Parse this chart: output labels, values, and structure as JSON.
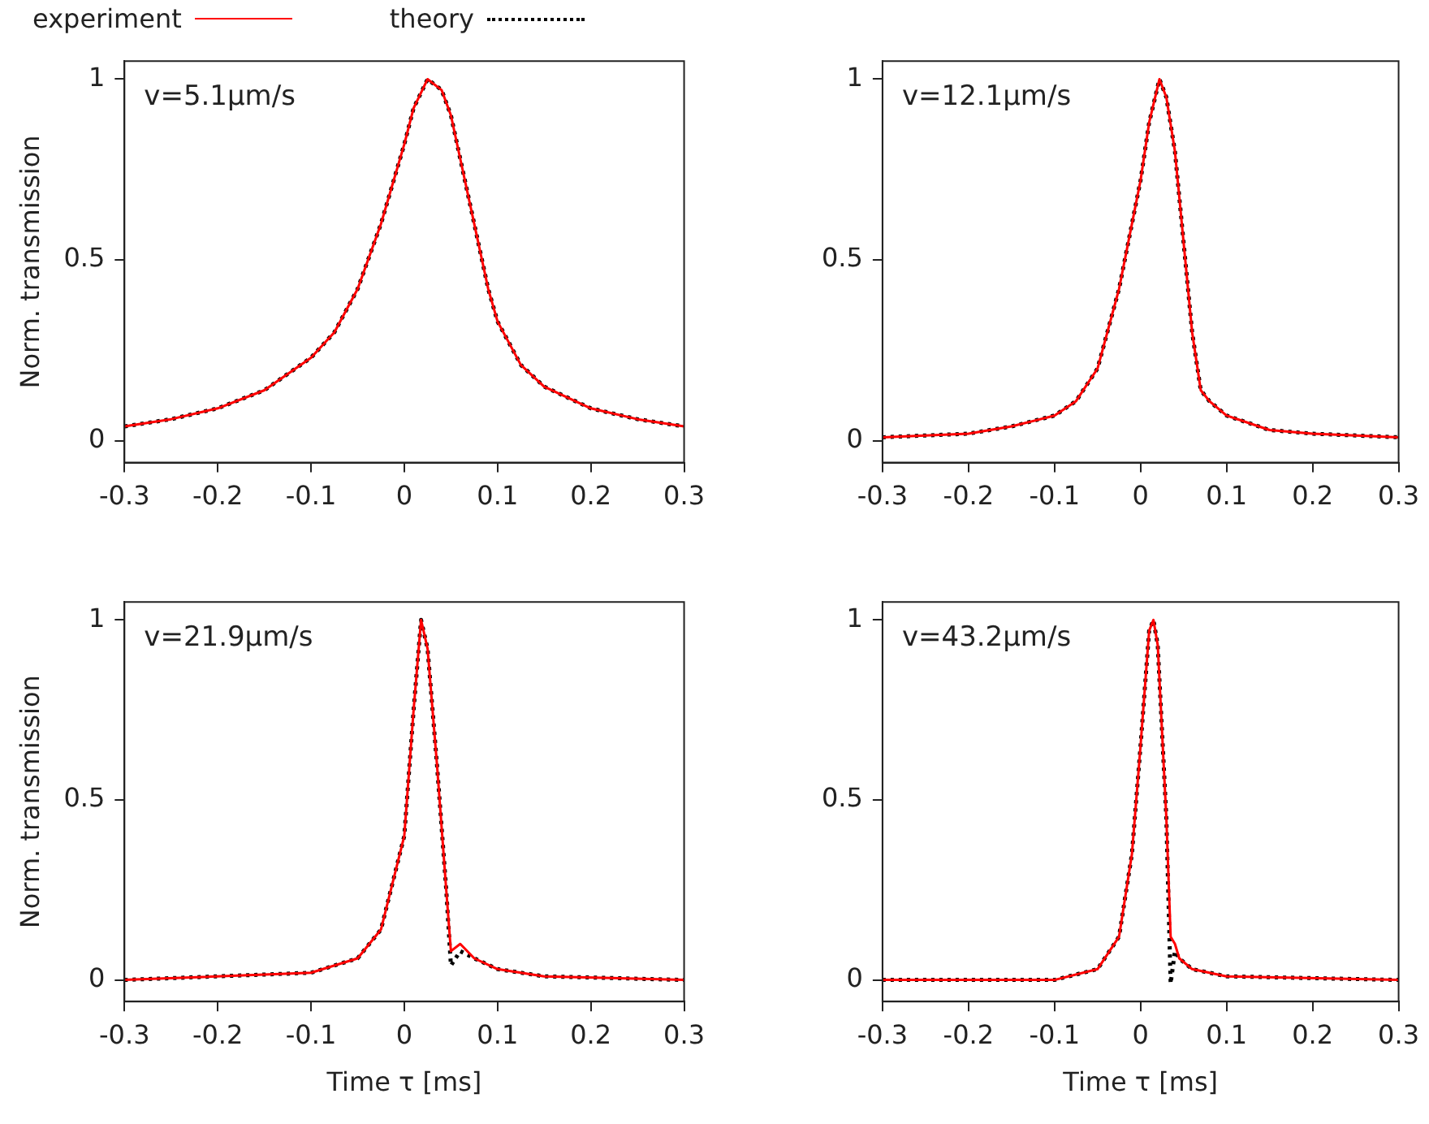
{
  "chart_data": [
    {
      "type": "line",
      "ylabel": "Norm. transmission",
      "annotations": [
        "v=5.1µm/s"
      ],
      "xlim": [
        -0.3,
        0.3
      ],
      "xticks": [
        -0.3,
        -0.2,
        -0.1,
        0,
        0.1,
        0.2,
        0.3
      ],
      "ylim": [
        -0.06,
        1.05
      ],
      "yticks": [
        0,
        0.5,
        1
      ],
      "grid": false,
      "legend": "top",
      "marker": "none",
      "series": [
        {
          "name": "experiment",
          "color": "#ff0000",
          "line_style": "solid",
          "x": [
            -0.3,
            -0.25,
            -0.2,
            -0.15,
            -0.1,
            -0.075,
            -0.05,
            -0.025,
            0,
            0.01,
            0.025,
            0.04,
            0.05,
            0.06,
            0.075,
            0.09,
            0.1,
            0.125,
            0.15,
            0.2,
            0.25,
            0.3
          ],
          "values": [
            0.04,
            0.06,
            0.09,
            0.14,
            0.23,
            0.3,
            0.42,
            0.6,
            0.82,
            0.92,
            1.0,
            0.97,
            0.9,
            0.78,
            0.6,
            0.42,
            0.33,
            0.21,
            0.15,
            0.09,
            0.06,
            0.04
          ]
        },
        {
          "name": "theory",
          "color": "#000000",
          "line_style": "dotted",
          "x": [
            -0.3,
            -0.25,
            -0.2,
            -0.15,
            -0.1,
            -0.075,
            -0.05,
            -0.025,
            0,
            0.01,
            0.025,
            0.04,
            0.05,
            0.06,
            0.075,
            0.09,
            0.1,
            0.125,
            0.15,
            0.2,
            0.25,
            0.3
          ],
          "values": [
            0.04,
            0.06,
            0.09,
            0.14,
            0.23,
            0.3,
            0.42,
            0.6,
            0.82,
            0.92,
            1.0,
            0.97,
            0.9,
            0.78,
            0.6,
            0.42,
            0.33,
            0.21,
            0.15,
            0.09,
            0.06,
            0.04
          ]
        }
      ]
    },
    {
      "type": "line",
      "annotations": [
        "v=12.1µm/s"
      ],
      "xlim": [
        -0.3,
        0.3
      ],
      "xticks": [
        -0.3,
        -0.2,
        -0.1,
        0,
        0.1,
        0.2,
        0.3
      ],
      "ylim": [
        -0.06,
        1.05
      ],
      "yticks": [
        0,
        0.5,
        1
      ],
      "grid": false,
      "marker": "none",
      "series": [
        {
          "color": "#ff0000",
          "line_style": "solid",
          "x": [
            -0.3,
            -0.2,
            -0.15,
            -0.1,
            -0.075,
            -0.05,
            -0.025,
            0,
            0.01,
            0.022,
            0.03,
            0.04,
            0.05,
            0.06,
            0.07,
            0.08,
            0.1,
            0.15,
            0.2,
            0.3
          ],
          "values": [
            0.01,
            0.02,
            0.04,
            0.07,
            0.11,
            0.2,
            0.42,
            0.72,
            0.88,
            1.0,
            0.95,
            0.8,
            0.55,
            0.3,
            0.14,
            0.11,
            0.07,
            0.03,
            0.02,
            0.01
          ]
        },
        {
          "color": "#000000",
          "line_style": "dotted",
          "x": [
            -0.3,
            -0.2,
            -0.15,
            -0.1,
            -0.075,
            -0.05,
            -0.025,
            0,
            0.01,
            0.022,
            0.03,
            0.04,
            0.05,
            0.06,
            0.07,
            0.08,
            0.1,
            0.15,
            0.2,
            0.3
          ],
          "values": [
            0.01,
            0.02,
            0.04,
            0.07,
            0.11,
            0.2,
            0.42,
            0.72,
            0.88,
            1.0,
            0.95,
            0.8,
            0.55,
            0.3,
            0.14,
            0.11,
            0.07,
            0.03,
            0.02,
            0.01
          ]
        }
      ]
    },
    {
      "type": "line",
      "xlabel": "Time τ [ms]",
      "ylabel": "Norm. transmission",
      "annotations": [
        "v=21.9µm/s"
      ],
      "xlim": [
        -0.3,
        0.3
      ],
      "xticks": [
        -0.3,
        -0.2,
        -0.1,
        0,
        0.1,
        0.2,
        0.3
      ],
      "ylim": [
        -0.06,
        1.05
      ],
      "yticks": [
        0,
        0.5,
        1
      ],
      "grid": false,
      "marker": "none",
      "series": [
        {
          "color": "#ff0000",
          "line_style": "solid",
          "x": [
            -0.3,
            -0.1,
            -0.05,
            -0.025,
            0,
            0.01,
            0.018,
            0.025,
            0.035,
            0.045,
            0.05,
            0.06,
            0.075,
            0.1,
            0.15,
            0.3
          ],
          "values": [
            0.0,
            0.02,
            0.06,
            0.14,
            0.4,
            0.75,
            1.0,
            0.92,
            0.6,
            0.25,
            0.08,
            0.1,
            0.06,
            0.03,
            0.01,
            0.0
          ]
        },
        {
          "color": "#000000",
          "line_style": "dotted",
          "x": [
            -0.3,
            -0.1,
            -0.05,
            -0.025,
            0,
            0.01,
            0.018,
            0.025,
            0.035,
            0.045,
            0.05,
            0.06,
            0.075,
            0.1,
            0.15,
            0.3
          ],
          "values": [
            0.0,
            0.02,
            0.06,
            0.14,
            0.4,
            0.75,
            1.0,
            0.92,
            0.6,
            0.25,
            0.04,
            0.08,
            0.06,
            0.03,
            0.01,
            0.0
          ]
        }
      ]
    },
    {
      "type": "line",
      "xlabel": "Time τ [ms]",
      "annotations": [
        "v=43.2µm/s"
      ],
      "xlim": [
        -0.3,
        0.3
      ],
      "xticks": [
        -0.3,
        -0.2,
        -0.1,
        0,
        0.1,
        0.2,
        0.3
      ],
      "ylim": [
        -0.06,
        1.05
      ],
      "yticks": [
        0,
        0.5,
        1
      ],
      "grid": false,
      "marker": "none",
      "series": [
        {
          "color": "#ff0000",
          "line_style": "solid",
          "x": [
            -0.3,
            -0.1,
            -0.05,
            -0.025,
            -0.01,
            0,
            0.01,
            0.015,
            0.02,
            0.03,
            0.035,
            0.04,
            0.045,
            0.06,
            0.1,
            0.3
          ],
          "values": [
            0.0,
            0.0,
            0.03,
            0.12,
            0.35,
            0.65,
            0.97,
            1.0,
            0.93,
            0.45,
            0.12,
            0.1,
            0.06,
            0.03,
            0.01,
            0.0
          ]
        },
        {
          "color": "#000000",
          "line_style": "dotted",
          "x": [
            -0.3,
            -0.1,
            -0.05,
            -0.025,
            -0.01,
            0,
            0.01,
            0.015,
            0.02,
            0.03,
            0.035,
            0.04,
            0.045,
            0.06,
            0.1,
            0.3
          ],
          "values": [
            0.0,
            0.0,
            0.03,
            0.12,
            0.35,
            0.65,
            0.97,
            1.0,
            0.93,
            0.45,
            -0.01,
            0.08,
            0.06,
            0.03,
            0.01,
            0.0
          ]
        }
      ]
    }
  ]
}
